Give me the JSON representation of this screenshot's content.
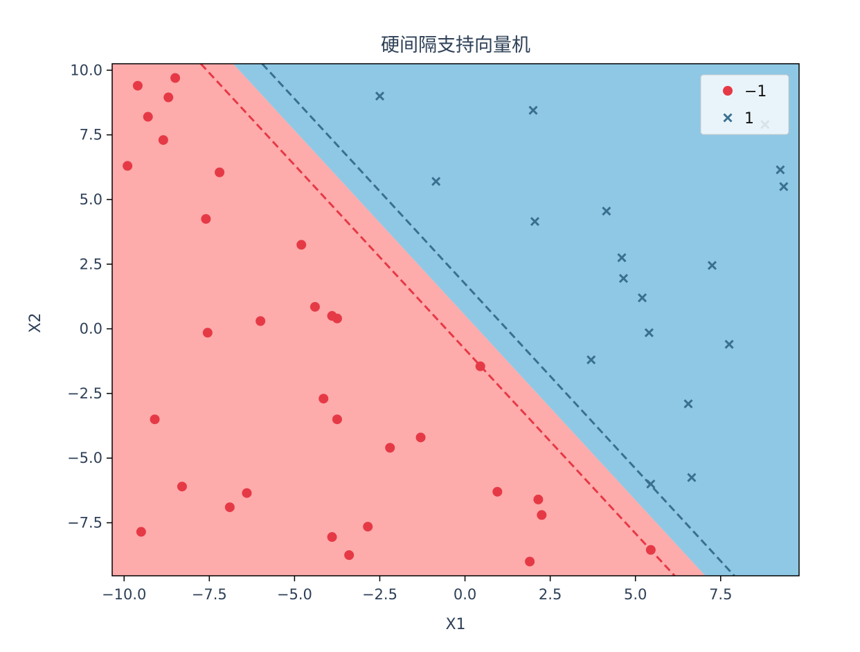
{
  "chart_data": {
    "type": "scatter",
    "title": "硬间隔支持向量机",
    "xlabel": "X1",
    "ylabel": "X2",
    "xlim": [
      -10.35,
      9.8
    ],
    "ylim": [
      -9.55,
      10.25
    ],
    "xticks": [
      -10.0,
      -7.5,
      -5.0,
      -2.5,
      0.0,
      2.5,
      5.0,
      7.5
    ],
    "xtick_labels": [
      "−10.0",
      "−7.5",
      "−5.0",
      "−2.5",
      "0.0",
      "2.5",
      "5.0",
      "7.5"
    ],
    "yticks": [
      10.0,
      7.5,
      5.0,
      2.5,
      0.0,
      -2.5,
      -5.0,
      -7.5
    ],
    "ytick_labels": [
      "10.0",
      "7.5",
      "5.0",
      "2.5",
      "0.0",
      "−2.5",
      "−5.0",
      "−7.5"
    ],
    "grid": false,
    "legend_position": "top-right",
    "colors": {
      "class_neg": "#e63946",
      "class_pos": "#3a6f8f",
      "region_neg": "#fdabab",
      "region_pos": "#8fc8e4",
      "text": "#2e4057",
      "axes": "#000000"
    },
    "series": [
      {
        "name": "−1",
        "marker": "circle",
        "color": "#e63946",
        "points": [
          [
            -9.6,
            9.4
          ],
          [
            -8.5,
            9.7
          ],
          [
            -8.7,
            8.95
          ],
          [
            -9.3,
            8.2
          ],
          [
            -8.85,
            7.3
          ],
          [
            -9.9,
            6.3
          ],
          [
            -7.2,
            6.05
          ],
          [
            -7.6,
            4.25
          ],
          [
            -4.8,
            3.25
          ],
          [
            -4.4,
            0.85
          ],
          [
            -3.9,
            0.5
          ],
          [
            -3.75,
            0.4
          ],
          [
            -6.0,
            0.3
          ],
          [
            -7.55,
            -0.15
          ],
          [
            0.45,
            -1.45
          ],
          [
            -4.15,
            -2.7
          ],
          [
            -3.75,
            -3.5
          ],
          [
            -9.1,
            -3.5
          ],
          [
            -1.3,
            -4.2
          ],
          [
            -2.2,
            -4.6
          ],
          [
            -8.3,
            -6.1
          ],
          [
            -6.4,
            -6.35
          ],
          [
            -6.9,
            -6.9
          ],
          [
            0.95,
            -6.3
          ],
          [
            2.15,
            -6.6
          ],
          [
            2.25,
            -7.2
          ],
          [
            -9.5,
            -7.85
          ],
          [
            -2.85,
            -7.65
          ],
          [
            -3.9,
            -8.05
          ],
          [
            -3.4,
            -8.75
          ],
          [
            5.45,
            -8.55
          ],
          [
            1.9,
            -9.0
          ]
        ]
      },
      {
        "name": "1",
        "marker": "x",
        "color": "#3a6f8f",
        "points": [
          [
            -2.5,
            9.0
          ],
          [
            2.0,
            8.45
          ],
          [
            8.8,
            7.9
          ],
          [
            9.25,
            6.15
          ],
          [
            9.35,
            5.5
          ],
          [
            -0.85,
            5.7
          ],
          [
            4.15,
            4.55
          ],
          [
            2.05,
            4.15
          ],
          [
            4.6,
            2.75
          ],
          [
            7.25,
            2.45
          ],
          [
            4.65,
            1.95
          ],
          [
            5.2,
            1.2
          ],
          [
            5.4,
            -0.15
          ],
          [
            7.75,
            -0.6
          ],
          [
            3.7,
            -1.2
          ],
          [
            6.55,
            -2.9
          ],
          [
            6.65,
            -5.75
          ],
          [
            5.45,
            -6.0
          ]
        ]
      }
    ],
    "decision_boundary": {
      "x_at_y_top": -6.8,
      "x_at_y_bottom": 7.05
    },
    "margins": [
      {
        "side": "−1",
        "color": "#e63946",
        "points": [
          [
            -7.75,
            10.25
          ],
          [
            6.15,
            -9.55
          ]
        ]
      },
      {
        "side": "1",
        "color": "#3a6f8f",
        "points": [
          [
            -5.95,
            10.25
          ],
          [
            7.9,
            -9.55
          ]
        ]
      }
    ]
  }
}
